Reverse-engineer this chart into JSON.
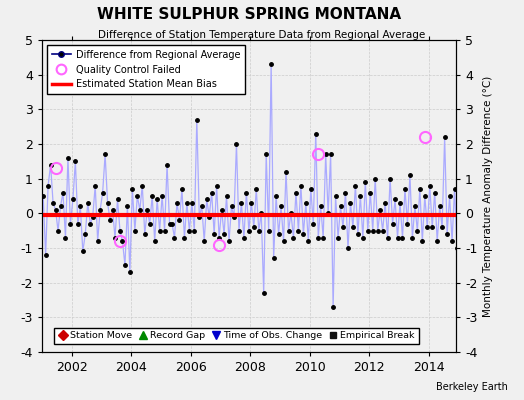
{
  "title": "WHITE SULPHUR SPRING MONTANA",
  "subtitle": "Difference of Station Temperature Data from Regional Average",
  "ylabel": "Monthly Temperature Anomaly Difference (°C)",
  "xlim": [
    2001.0,
    2014.92
  ],
  "ylim": [
    -4,
    5
  ],
  "yticks": [
    -4,
    -3,
    -2,
    -1,
    0,
    1,
    2,
    3,
    4,
    5
  ],
  "xticks": [
    2002,
    2004,
    2006,
    2008,
    2010,
    2012,
    2014
  ],
  "bias_value": -0.05,
  "background_color": "#f0f0f0",
  "line_color": "#aaaaff",
  "marker_color": "#000080",
  "dot_color": "#000000",
  "bias_color": "#ff0000",
  "qc_color": "#ff66ff",
  "watermark": "Berkeley Earth",
  "legend1_entries": [
    "Difference from Regional Average",
    "Quality Control Failed",
    "Estimated Station Mean Bias"
  ],
  "legend2_entries": [
    "Station Move",
    "Record Gap",
    "Time of Obs. Change",
    "Empirical Break"
  ],
  "time_data": [
    2001.042,
    2001.125,
    2001.208,
    2001.292,
    2001.375,
    2001.458,
    2001.542,
    2001.625,
    2001.708,
    2001.792,
    2001.875,
    2001.958,
    2002.042,
    2002.125,
    2002.208,
    2002.292,
    2002.375,
    2002.458,
    2002.542,
    2002.625,
    2002.708,
    2002.792,
    2002.875,
    2002.958,
    2003.042,
    2003.125,
    2003.208,
    2003.292,
    2003.375,
    2003.458,
    2003.542,
    2003.625,
    2003.708,
    2003.792,
    2003.875,
    2003.958,
    2004.042,
    2004.125,
    2004.208,
    2004.292,
    2004.375,
    2004.458,
    2004.542,
    2004.625,
    2004.708,
    2004.792,
    2004.875,
    2004.958,
    2005.042,
    2005.125,
    2005.208,
    2005.292,
    2005.375,
    2005.458,
    2005.542,
    2005.625,
    2005.708,
    2005.792,
    2005.875,
    2005.958,
    2006.042,
    2006.125,
    2006.208,
    2006.292,
    2006.375,
    2006.458,
    2006.542,
    2006.625,
    2006.708,
    2006.792,
    2006.875,
    2006.958,
    2007.042,
    2007.125,
    2007.208,
    2007.292,
    2007.375,
    2007.458,
    2007.542,
    2007.625,
    2007.708,
    2007.792,
    2007.875,
    2007.958,
    2008.042,
    2008.125,
    2008.208,
    2008.292,
    2008.375,
    2008.458,
    2008.542,
    2008.625,
    2008.708,
    2008.792,
    2008.875,
    2008.958,
    2009.042,
    2009.125,
    2009.208,
    2009.292,
    2009.375,
    2009.458,
    2009.542,
    2009.625,
    2009.708,
    2009.792,
    2009.875,
    2009.958,
    2010.042,
    2010.125,
    2010.208,
    2010.292,
    2010.375,
    2010.458,
    2010.542,
    2010.625,
    2010.708,
    2010.792,
    2010.875,
    2010.958,
    2011.042,
    2011.125,
    2011.208,
    2011.292,
    2011.375,
    2011.458,
    2011.542,
    2011.625,
    2011.708,
    2011.792,
    2011.875,
    2011.958,
    2012.042,
    2012.125,
    2012.208,
    2012.292,
    2012.375,
    2012.458,
    2012.542,
    2012.625,
    2012.708,
    2012.792,
    2012.875,
    2012.958,
    2013.042,
    2013.125,
    2013.208,
    2013.292,
    2013.375,
    2013.458,
    2013.542,
    2013.625,
    2013.708,
    2013.792,
    2013.875,
    2013.958,
    2014.042,
    2014.125,
    2014.208,
    2014.292,
    2014.375,
    2014.458,
    2014.542,
    2014.625,
    2014.708,
    2014.792,
    2014.875,
    2014.958
  ],
  "diff_data": [
    0.5,
    -1.2,
    0.8,
    1.4,
    0.3,
    0.1,
    -0.5,
    0.2,
    0.6,
    -0.7,
    1.6,
    -0.3,
    0.4,
    1.5,
    -0.3,
    0.2,
    -1.1,
    -0.6,
    0.3,
    -0.3,
    -0.1,
    0.8,
    -0.8,
    0.1,
    0.6,
    1.7,
    0.3,
    -0.2,
    0.1,
    -0.7,
    0.4,
    -0.5,
    -0.8,
    -1.5,
    0.2,
    -1.7,
    0.7,
    -0.5,
    0.5,
    0.1,
    0.8,
    -0.6,
    0.1,
    -0.3,
    0.5,
    -0.8,
    0.4,
    -0.5,
    0.5,
    -0.5,
    1.4,
    -0.3,
    -0.3,
    -0.7,
    0.3,
    -0.2,
    0.7,
    -0.7,
    0.3,
    -0.5,
    0.3,
    -0.5,
    2.7,
    -0.1,
    0.2,
    -0.8,
    0.4,
    -0.1,
    0.6,
    -0.6,
    0.8,
    -0.7,
    0.1,
    -0.6,
    0.5,
    -0.8,
    0.2,
    -0.1,
    2.0,
    -0.5,
    0.3,
    -0.7,
    0.6,
    -0.5,
    0.3,
    -0.4,
    0.7,
    -0.5,
    0.0,
    -2.3,
    1.7,
    -0.5,
    4.3,
    -1.3,
    0.5,
    -0.6,
    0.2,
    -0.8,
    1.2,
    -0.5,
    0.0,
    -0.7,
    0.6,
    -0.5,
    0.8,
    -0.6,
    0.3,
    -0.8,
    0.7,
    -0.3,
    2.3,
    -0.7,
    0.2,
    -0.7,
    1.7,
    0.0,
    1.7,
    -2.7,
    0.5,
    -0.7,
    0.2,
    -0.4,
    0.6,
    -1.0,
    0.3,
    -0.4,
    0.8,
    -0.6,
    0.5,
    -0.7,
    0.9,
    -0.5,
    0.6,
    -0.5,
    1.0,
    -0.5,
    0.1,
    -0.5,
    0.3,
    -0.7,
    1.0,
    -0.3,
    0.4,
    -0.7,
    0.3,
    -0.7,
    0.7,
    -0.3,
    1.1,
    -0.7,
    0.2,
    -0.5,
    0.7,
    -0.8,
    0.5,
    -0.4,
    0.8,
    -0.4,
    0.6,
    -0.8,
    0.2,
    -0.4,
    2.2,
    -0.6,
    0.5,
    -0.8,
    0.7,
    -1.0
  ],
  "qc_failed_times": [
    2001.458,
    2003.625,
    2006.958,
    2010.292,
    2013.875
  ],
  "qc_failed_values": [
    1.3,
    -0.8,
    -0.9,
    1.7,
    2.2
  ]
}
